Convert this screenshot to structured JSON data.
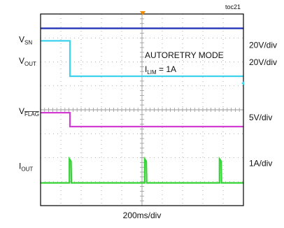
{
  "chart_data": {
    "type": "line",
    "figure_id": "toc21",
    "title": "",
    "annotation_line1": "AUTORETRY MODE",
    "annotation_line2": {
      "main": "I",
      "sub": "LIM",
      "rest": " = 1A"
    },
    "xlabel": "200ms/div",
    "x_divisions": 10,
    "y_divisions": 8,
    "grid": true,
    "colors": {
      "vsn": "#1a2fb8",
      "vout": "#3fd2ee",
      "vflag": "#d13ed1",
      "iout": "#33d333",
      "grid": "#9a9a9a",
      "border": "#000000",
      "trigger": "#f08a00"
    },
    "channels": [
      {
        "id": "vsn",
        "label_main": "V",
        "label_sub": "SN",
        "scale": "20V/div",
        "baseline_div": 7.4,
        "points": [
          [
            0,
            7.4
          ],
          [
            10,
            7.4
          ]
        ]
      },
      {
        "id": "vout",
        "label_main": "V",
        "label_sub": "OUT",
        "scale": "20V/div",
        "baseline_div": 5.4,
        "points": [
          [
            0,
            6.88
          ],
          [
            1.45,
            6.88
          ],
          [
            1.45,
            5.4
          ],
          [
            10,
            5.4
          ]
        ]
      },
      {
        "id": "vflag",
        "label_main": "V",
        "label_sub": "FLAG",
        "label_overline": true,
        "scale": "5V/div",
        "baseline_div": 3.3,
        "points": [
          [
            0,
            3.88
          ],
          [
            1.45,
            3.88
          ],
          [
            1.45,
            3.3
          ],
          [
            10,
            3.3
          ]
        ]
      },
      {
        "id": "iout",
        "label_main": "I",
        "label_sub": "OUT",
        "scale": "1A/div",
        "baseline_div": 0.95,
        "points": [
          [
            0,
            0.95
          ],
          [
            1.42,
            0.95
          ],
          [
            1.42,
            1.95
          ],
          [
            1.5,
            1.85
          ],
          [
            1.52,
            0.95
          ],
          [
            5.13,
            0.95
          ],
          [
            5.13,
            1.95
          ],
          [
            5.21,
            1.85
          ],
          [
            5.23,
            0.95
          ],
          [
            8.82,
            0.95
          ],
          [
            8.82,
            1.95
          ],
          [
            8.9,
            1.85
          ],
          [
            8.92,
            0.95
          ],
          [
            10,
            0.95
          ]
        ]
      }
    ]
  }
}
